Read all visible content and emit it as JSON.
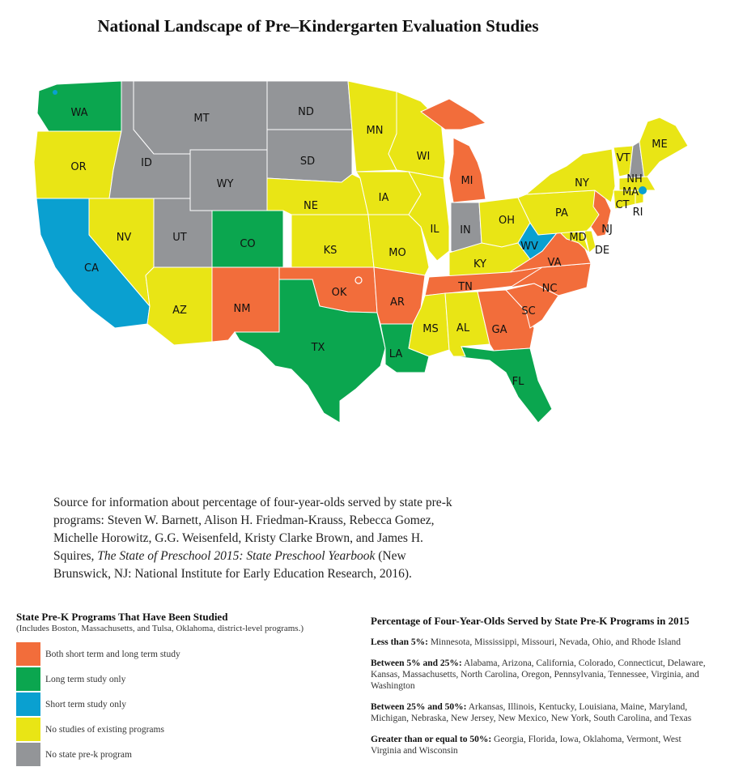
{
  "title": "National Landscape of Pre–Kindergarten Evaluation Studies",
  "colors": {
    "both": "#f26d3b",
    "long": "#0ba64f",
    "short": "#0aa0d0",
    "none": "#e9e515",
    "noprogram": "#939598"
  },
  "states": [
    {
      "abbr": "WA",
      "status": "long"
    },
    {
      "abbr": "OR",
      "status": "none"
    },
    {
      "abbr": "CA",
      "status": "short"
    },
    {
      "abbr": "NV",
      "status": "none"
    },
    {
      "abbr": "ID",
      "status": "noprogram"
    },
    {
      "abbr": "MT",
      "status": "noprogram"
    },
    {
      "abbr": "WY",
      "status": "noprogram"
    },
    {
      "abbr": "UT",
      "status": "noprogram"
    },
    {
      "abbr": "AZ",
      "status": "none"
    },
    {
      "abbr": "CO",
      "status": "long"
    },
    {
      "abbr": "NM",
      "status": "both"
    },
    {
      "abbr": "ND",
      "status": "noprogram"
    },
    {
      "abbr": "SD",
      "status": "noprogram"
    },
    {
      "abbr": "NE",
      "status": "none"
    },
    {
      "abbr": "KS",
      "status": "none"
    },
    {
      "abbr": "OK",
      "status": "both"
    },
    {
      "abbr": "TX",
      "status": "long"
    },
    {
      "abbr": "MN",
      "status": "none"
    },
    {
      "abbr": "IA",
      "status": "none"
    },
    {
      "abbr": "MO",
      "status": "none"
    },
    {
      "abbr": "AR",
      "status": "both"
    },
    {
      "abbr": "LA",
      "status": "long"
    },
    {
      "abbr": "WI",
      "status": "none"
    },
    {
      "abbr": "IL",
      "status": "none"
    },
    {
      "abbr": "MI",
      "status": "both"
    },
    {
      "abbr": "IN",
      "status": "noprogram"
    },
    {
      "abbr": "OH",
      "status": "none"
    },
    {
      "abbr": "KY",
      "status": "none"
    },
    {
      "abbr": "TN",
      "status": "both"
    },
    {
      "abbr": "MS",
      "status": "none"
    },
    {
      "abbr": "AL",
      "status": "none"
    },
    {
      "abbr": "GA",
      "status": "both"
    },
    {
      "abbr": "FL",
      "status": "long"
    },
    {
      "abbr": "SC",
      "status": "both"
    },
    {
      "abbr": "NC",
      "status": "both"
    },
    {
      "abbr": "VA",
      "status": "both"
    },
    {
      "abbr": "WV",
      "status": "short"
    },
    {
      "abbr": "MD",
      "status": "none"
    },
    {
      "abbr": "DE",
      "status": "none"
    },
    {
      "abbr": "PA",
      "status": "none"
    },
    {
      "abbr": "NJ",
      "status": "both"
    },
    {
      "abbr": "NY",
      "status": "none"
    },
    {
      "abbr": "VT",
      "status": "none"
    },
    {
      "abbr": "NH",
      "status": "noprogram"
    },
    {
      "abbr": "ME",
      "status": "none"
    },
    {
      "abbr": "MA",
      "status": "none"
    },
    {
      "abbr": "CT",
      "status": "none"
    },
    {
      "abbr": "RI",
      "status": "none"
    }
  ],
  "source": {
    "text": "Source for information about percentage of four-year-olds served by state pre-k programs: Steven W. Barnett, Alison H. Friedman-Krauss, Rebecca Gomez, Michelle Horowitz, G.G. Weisenfeld, Kristy Clarke Brown, and James H. Squires, ",
    "book": "The State of Preschool 2015: State Preschool Yearbook",
    "tail": " (New Brunswick, NJ: National Institute for Early Education Research, 2016)."
  },
  "legend": {
    "title": "State Pre-K Programs That Have Been Studied",
    "subtitle": "(Includes Boston, Massachusetts, and Tulsa, Oklahoma, district-level programs.)",
    "items": [
      {
        "key": "both",
        "label": "Both short term and long term study"
      },
      {
        "key": "long",
        "label": "Long term study only"
      },
      {
        "key": "short",
        "label": "Short term study only"
      },
      {
        "key": "none",
        "label": "No studies of existing programs"
      },
      {
        "key": "noprogram",
        "label": "No state pre-k program"
      }
    ]
  },
  "percentages": {
    "title": "Percentage of Four-Year-Olds Served by State Pre-K Programs in 2015",
    "groups": [
      {
        "label": "Less than 5%:",
        "states": "Minnesota, Mississippi, Missouri, Nevada, Ohio, and Rhode Island"
      },
      {
        "label": "Between 5% and 25%:",
        "states": "Alabama, Arizona, California, Colorado, Connecticut, Delaware, Kansas, Massachusetts, North Carolina, Oregon, Pennsylvania, Tennessee, Virginia, and Washington"
      },
      {
        "label": "Between 25% and 50%:",
        "states": "Arkansas, Illinois, Kentucky, Louisiana, Maine, Maryland, Michigan, Nebraska, New Jersey, New Mexico, New York, South Carolina, and Texas"
      },
      {
        "label": "Greater than or equal to 50%:",
        "states": "Georgia, Florida, Iowa, Oklahoma, Vermont, West Virginia and Wisconsin"
      }
    ]
  }
}
